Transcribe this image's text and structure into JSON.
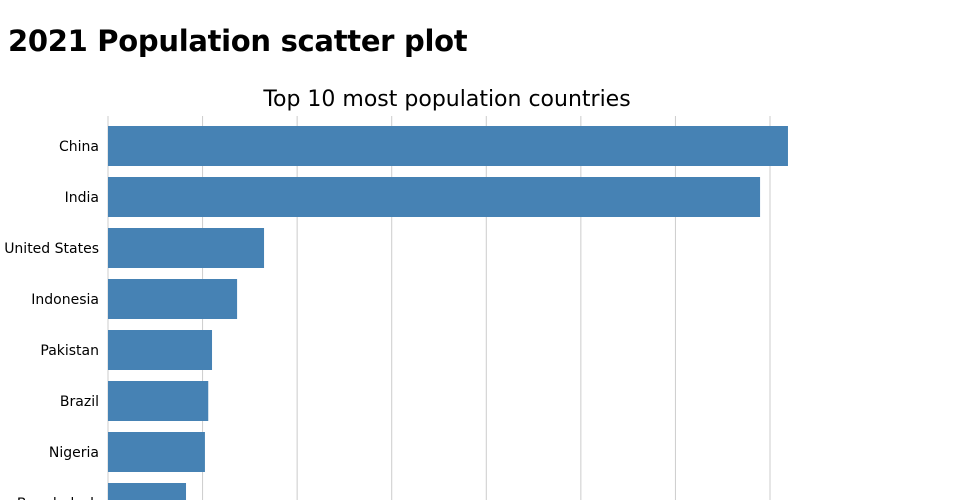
{
  "page": {
    "title": "2021 Population scatter plot"
  },
  "chart_data": {
    "type": "bar",
    "orientation": "horizontal",
    "title": "Top 10 most population countries",
    "xlabel": "",
    "ylabel": "",
    "categories": [
      "China",
      "India",
      "United States",
      "Indonesia",
      "Pakistan",
      "Brazil",
      "Nigeria",
      "Bangladesh"
    ],
    "values": [
      1438,
      1379,
      330,
      273,
      220,
      212,
      205,
      165
    ],
    "xlim": [
      0,
      1400
    ],
    "grid": true,
    "bar_color": "#4682b4",
    "grid_color": "#cccccc"
  }
}
